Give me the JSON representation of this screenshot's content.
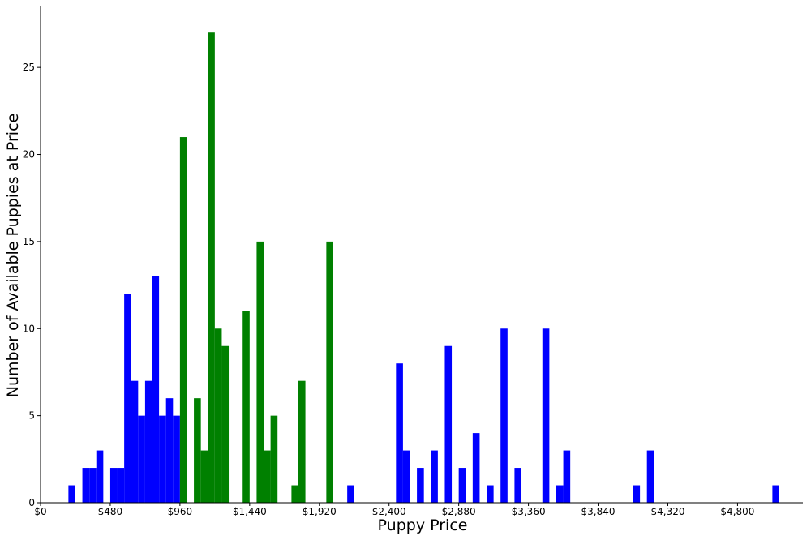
{
  "chart_data": {
    "type": "bar",
    "title": "",
    "xlabel": "Puppy Price",
    "ylabel": "Number of Available Puppies at Price",
    "xlim": [
      0,
      5250
    ],
    "ylim": [
      0,
      28.5
    ],
    "x_ticks": [
      0,
      480,
      960,
      1440,
      1920,
      2400,
      2880,
      3360,
      3840,
      4320,
      4800
    ],
    "x_tick_labels": [
      "$0",
      "$480",
      "$960",
      "$1,440",
      "$1,920",
      "$2,400",
      "$2,880",
      "$3,360",
      "$3,840",
      "$4,320",
      "$4,800"
    ],
    "y_ticks": [
      0,
      5,
      10,
      15,
      20,
      25
    ],
    "y_tick_labels": [
      "0",
      "5",
      "10",
      "15",
      "20",
      "25"
    ],
    "bin_width": 48,
    "grid": false,
    "colors": {
      "blue": "#0000ff",
      "green": "#008000"
    },
    "series": [
      {
        "color": "#0000ff",
        "bins": [
          {
            "x": 192,
            "value": 1
          },
          {
            "x": 288,
            "value": 2
          },
          {
            "x": 336,
            "value": 2
          },
          {
            "x": 384,
            "value": 3
          },
          {
            "x": 480,
            "value": 2
          },
          {
            "x": 528,
            "value": 2
          },
          {
            "x": 576,
            "value": 12
          },
          {
            "x": 624,
            "value": 7
          },
          {
            "x": 672,
            "value": 5
          },
          {
            "x": 720,
            "value": 7
          },
          {
            "x": 768,
            "value": 13
          },
          {
            "x": 816,
            "value": 5
          },
          {
            "x": 864,
            "value": 6
          },
          {
            "x": 912,
            "value": 5
          },
          {
            "x": 2112,
            "value": 1
          },
          {
            "x": 2448,
            "value": 8
          },
          {
            "x": 2496,
            "value": 3
          },
          {
            "x": 2592,
            "value": 2
          },
          {
            "x": 2688,
            "value": 3
          },
          {
            "x": 2784,
            "value": 9
          },
          {
            "x": 2880,
            "value": 2
          },
          {
            "x": 2976,
            "value": 4
          },
          {
            "x": 3072,
            "value": 1
          },
          {
            "x": 3168,
            "value": 10
          },
          {
            "x": 3264,
            "value": 2
          },
          {
            "x": 3456,
            "value": 10
          },
          {
            "x": 3552,
            "value": 1
          },
          {
            "x": 3600,
            "value": 3
          },
          {
            "x": 4080,
            "value": 1
          },
          {
            "x": 4176,
            "value": 3
          },
          {
            "x": 5040,
            "value": 1
          }
        ]
      },
      {
        "color": "#008000",
        "bins": [
          {
            "x": 960,
            "value": 21
          },
          {
            "x": 1056,
            "value": 6
          },
          {
            "x": 1104,
            "value": 3
          },
          {
            "x": 1152,
            "value": 27
          },
          {
            "x": 1200,
            "value": 10
          },
          {
            "x": 1248,
            "value": 9
          },
          {
            "x": 1392,
            "value": 11
          },
          {
            "x": 1488,
            "value": 15
          },
          {
            "x": 1536,
            "value": 3
          },
          {
            "x": 1584,
            "value": 5
          },
          {
            "x": 1728,
            "value": 1
          },
          {
            "x": 1776,
            "value": 7
          },
          {
            "x": 1968,
            "value": 15
          }
        ]
      }
    ]
  }
}
